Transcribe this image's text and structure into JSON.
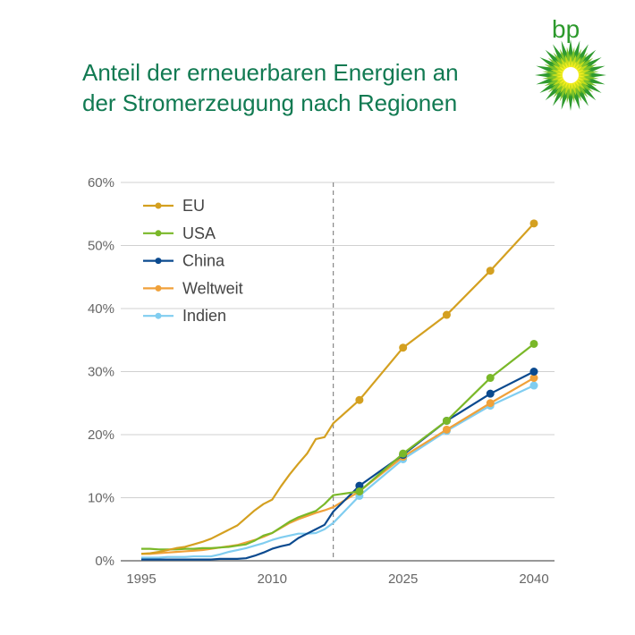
{
  "title_lines": [
    "Anteil der erneuerbaren Energien an",
    "der Stromerzeugung nach Regionen"
  ],
  "logo": {
    "text": "bp",
    "color": "#2d9a2d"
  },
  "chart_data": {
    "type": "line",
    "title": "Anteil der erneuerbaren Energien an der Stromerzeugung nach Regionen",
    "xlabel": "",
    "ylabel": "",
    "xlim": [
      1995,
      2040
    ],
    "ylim": [
      0,
      60
    ],
    "x_ticks": [
      1995,
      2010,
      2025,
      2040
    ],
    "x_tick_labels": [
      "1995",
      "2010",
      "2025",
      "2040"
    ],
    "y_ticks": [
      0,
      10,
      20,
      30,
      40,
      50,
      60
    ],
    "y_tick_labels": [
      "0%",
      "10%",
      "20%",
      "30%",
      "40%",
      "50%",
      "60%"
    ],
    "grid": "horizontal",
    "legend": "top-left",
    "divider_year": 2017,
    "historical_x": [
      1995,
      1996,
      1997,
      1998,
      1999,
      2000,
      2001,
      2002,
      2003,
      2004,
      2005,
      2006,
      2007,
      2008,
      2009,
      2010,
      2011,
      2012,
      2013,
      2014,
      2015,
      2016,
      2017
    ],
    "projection_x": [
      2020,
      2025,
      2030,
      2035,
      2040
    ],
    "series": [
      {
        "name": "EU",
        "color": "#d4a020",
        "historical": [
          1.1,
          1.2,
          1.4,
          1.7,
          2.0,
          2.2,
          2.6,
          3.0,
          3.5,
          4.2,
          4.9,
          5.6,
          6.8,
          8.0,
          9.0,
          9.7,
          11.8,
          13.7,
          15.4,
          17.0,
          19.3,
          19.6,
          21.8
        ],
        "projection": [
          25.5,
          33.8,
          39.0,
          46.0,
          53.5
        ]
      },
      {
        "name": "USA",
        "color": "#7ab829",
        "historical": [
          1.9,
          1.9,
          1.8,
          1.8,
          1.8,
          1.9,
          1.9,
          2.0,
          2.0,
          2.1,
          2.2,
          2.4,
          2.6,
          3.2,
          4.0,
          4.4,
          5.3,
          6.2,
          6.9,
          7.4,
          7.9,
          9.0,
          10.4
        ],
        "projection": [
          11.0,
          17.0,
          22.2,
          29.0,
          34.4
        ]
      },
      {
        "name": "China",
        "color": "#0b4a8f",
        "historical": [
          0.2,
          0.2,
          0.2,
          0.2,
          0.2,
          0.2,
          0.2,
          0.2,
          0.2,
          0.3,
          0.3,
          0.3,
          0.4,
          0.8,
          1.3,
          1.9,
          2.3,
          2.6,
          3.6,
          4.3,
          5.0,
          5.7,
          7.8
        ],
        "projection": [
          11.9,
          16.8,
          22.2,
          26.5,
          30.0
        ]
      },
      {
        "name": "Weltweit",
        "color": "#f0a13a",
        "historical": [
          1.1,
          1.1,
          1.2,
          1.3,
          1.4,
          1.5,
          1.6,
          1.7,
          1.9,
          2.1,
          2.3,
          2.5,
          2.9,
          3.3,
          3.8,
          4.4,
          5.2,
          6.0,
          6.6,
          7.1,
          7.6,
          8.0,
          8.5
        ],
        "projection": [
          11.0,
          16.5,
          20.8,
          25.0,
          29.0
        ]
      },
      {
        "name": "Indien",
        "color": "#80cdf0",
        "historical": [
          0.5,
          0.5,
          0.5,
          0.6,
          0.6,
          0.6,
          0.7,
          0.7,
          0.7,
          1.0,
          1.4,
          1.7,
          2.0,
          2.4,
          2.8,
          3.3,
          3.7,
          4.0,
          4.3,
          4.3,
          4.4,
          5.0,
          6.0
        ],
        "projection": [
          10.3,
          16.1,
          20.6,
          24.6,
          27.8
        ]
      }
    ]
  }
}
